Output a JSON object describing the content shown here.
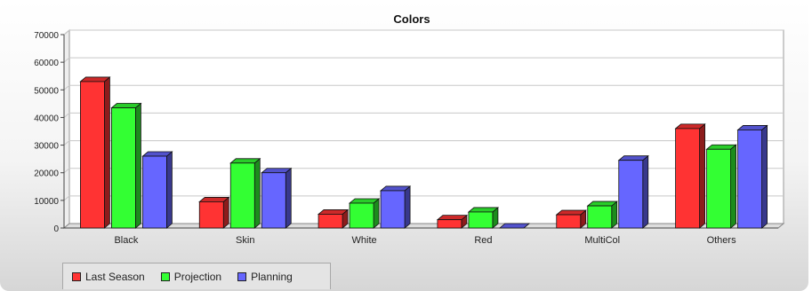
{
  "chart_data": {
    "type": "bar",
    "title": "Colors",
    "xlabel": "",
    "ylabel": "",
    "categories": [
      "Black",
      "Skin",
      "White",
      "Red",
      "MultiCol",
      "Others"
    ],
    "series": [
      {
        "name": "Last Season",
        "color": "#ff3333",
        "values": [
          53000,
          9500,
          5000,
          3000,
          4800,
          36000
        ]
      },
      {
        "name": "Projection",
        "color": "#33ff33",
        "values": [
          43500,
          23500,
          9000,
          5800,
          8000,
          28500
        ]
      },
      {
        "name": "Planning",
        "color": "#6666ff",
        "values": [
          26000,
          20000,
          13500,
          0,
          24500,
          35500
        ]
      }
    ],
    "ylim": [
      0,
      70000
    ],
    "yticks": [
      "0",
      "10000",
      "20000",
      "30000",
      "40000",
      "50000",
      "60000",
      "70000"
    ],
    "grid": true,
    "legend_position": "bottom-left"
  }
}
